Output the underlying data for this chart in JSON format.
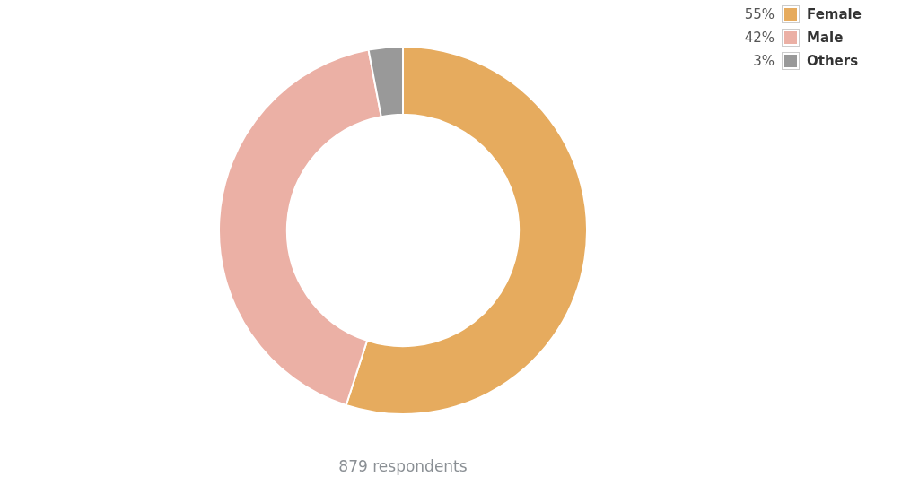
{
  "chart_data": {
    "type": "donut",
    "categories": [
      "Female",
      "Male",
      "Others"
    ],
    "values": [
      55,
      42,
      3
    ],
    "colors": [
      "#e6ab5e",
      "#ebb0a5",
      "#999999"
    ],
    "value_labels": [
      "55%",
      "42%",
      "3%"
    ],
    "legend": "top right",
    "annotations": [
      "879 respondents"
    ]
  }
}
